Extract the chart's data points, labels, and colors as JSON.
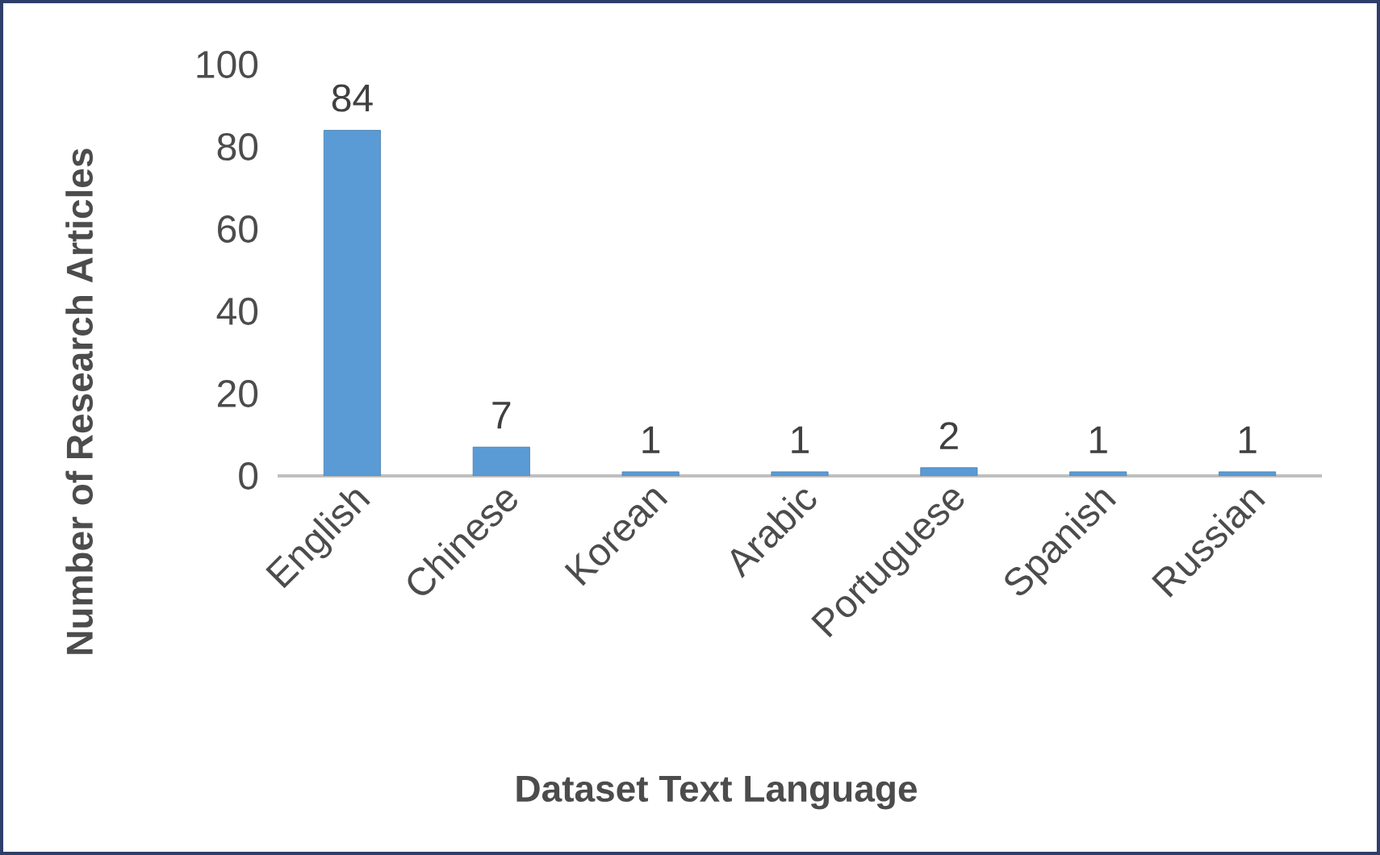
{
  "chart_data": {
    "type": "bar",
    "xlabel": "Dataset Text Language",
    "ylabel": "Number of Research Articles",
    "categories": [
      "English",
      "Chinese",
      "Korean",
      "Arabic",
      "Portuguese",
      "Spanish",
      "Russian"
    ],
    "values": [
      84,
      7,
      1,
      1,
      2,
      1,
      1
    ],
    "color": "#5b9bd5",
    "ylim": [
      0,
      100
    ],
    "yticks": [
      0,
      20,
      40,
      60,
      80,
      100
    ],
    "grid": false,
    "data_labels": true
  }
}
